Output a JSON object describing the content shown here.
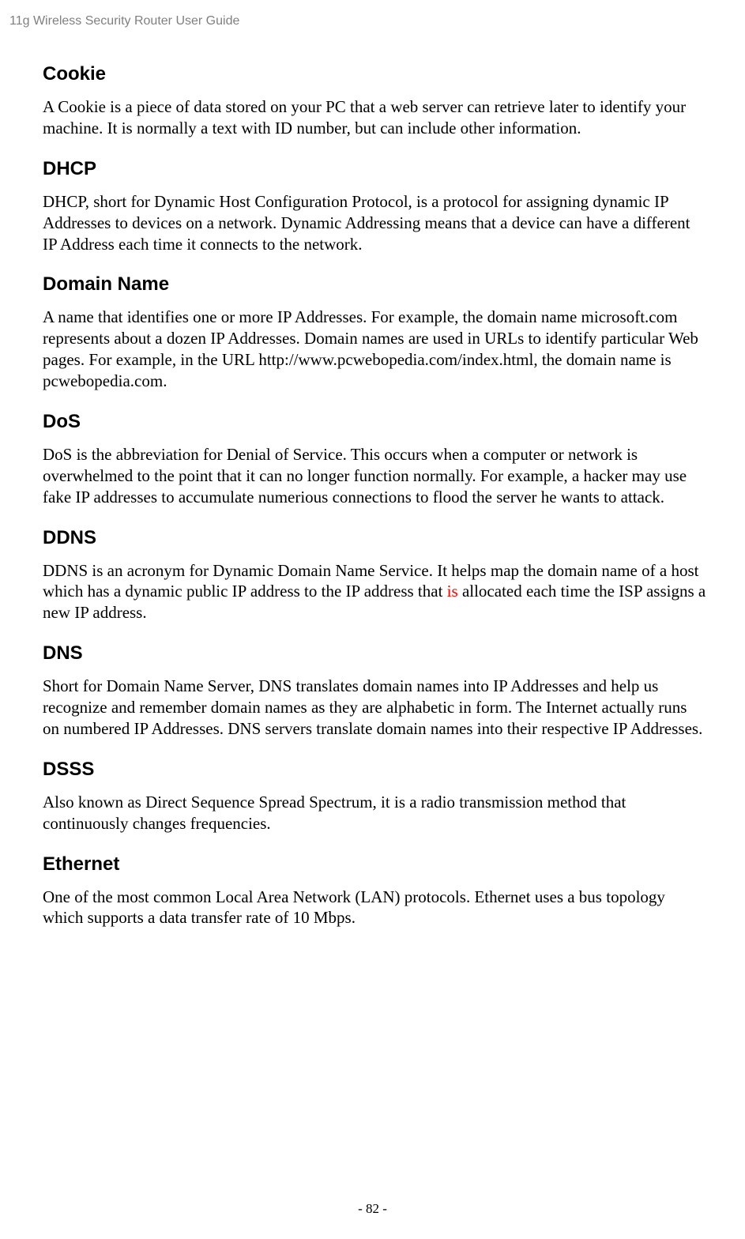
{
  "header": {
    "title": "11g Wireless Security Router User Guide"
  },
  "glossary": [
    {
      "term": "Cookie",
      "definition": "A Cookie is a piece of data stored on your PC that a web server can retrieve later to identify your machine. It is normally a text with ID number, but can include other information."
    },
    {
      "term": "DHCP",
      "definition": "DHCP, short for Dynamic Host Configuration Protocol, is a protocol for assigning dynamic IP Addresses to devices on a network. Dynamic Addressing means that a device can have a different IP Address each time it connects to the network."
    },
    {
      "term": "Domain Name",
      "definition": "A name that identifies one or more IP Addresses. For example, the domain name microsoft.com represents about a dozen IP Addresses. Domain names are used in URLs to identify particular Web pages. For example, in the URL http://www.pcwebopedia.com/index.html, the domain name is pcwebopedia.com."
    },
    {
      "term": "DoS",
      "definition": "DoS is the abbreviation for Denial of Service. This occurs when a computer or network is overwhelmed to the point that it can no longer function normally. For example, a hacker may use fake IP addresses to accumulate numerious connections to flood the server he wants to attack."
    },
    {
      "term": "DDNS",
      "definition_pre": "DDNS is an acronym for Dynamic Domain Name Service. It helps map the domain name of a host which has a dynamic public IP address to the IP address that ",
      "definition_highlight": "is",
      "definition_post": " allocated each time the ISP assigns a new IP address."
    },
    {
      "term": "DNS",
      "definition": "Short for Domain Name Server, DNS translates domain names into IP Addresses and help us recognize and remember domain names as they are alphabetic in form. The Internet actually runs on numbered IP Addresses. DNS servers translate domain names into their respective IP Addresses."
    },
    {
      "term": "DSSS",
      "definition": "Also known as Direct Sequence Spread Spectrum, it is a radio transmission method that continuously changes frequencies."
    },
    {
      "term": "Ethernet",
      "definition": "One of the most common Local Area Network (LAN) protocols. Ethernet uses a bus topology which supports a data transfer rate of 10 Mbps."
    }
  ],
  "footer": {
    "page_number": "- 82 -"
  }
}
